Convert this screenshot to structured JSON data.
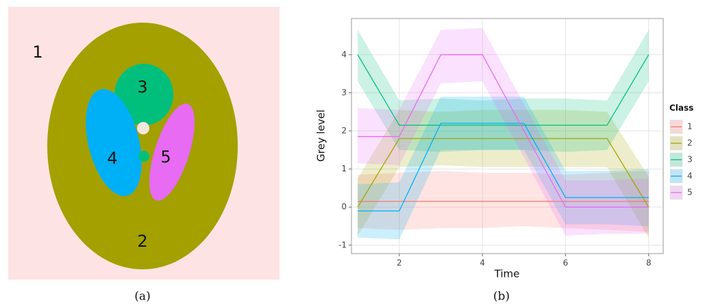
{
  "panel_a": {
    "labels": [
      "1",
      "2",
      "3",
      "4",
      "5"
    ],
    "caption": "(a)"
  },
  "chart_data": {
    "type": "line",
    "caption": "(b)",
    "x_label": "Time",
    "y_label": "Grey level",
    "legend_title": "Class",
    "x": [
      1,
      2,
      3,
      4,
      5,
      6,
      7,
      8
    ],
    "xlim": [
      0.85,
      8.35
    ],
    "xticks": [
      2,
      4,
      6,
      8
    ],
    "ylim": [
      -1.22,
      4.95
    ],
    "yticks": [
      -1,
      0,
      1,
      2,
      3,
      4
    ],
    "grid": true,
    "legend": "right",
    "series": [
      {
        "name": "1",
        "color": "#F8766D",
        "values": [
          0.15,
          0.15,
          0.15,
          0.15,
          0.15,
          0.15,
          0.15,
          0.15
        ],
        "lower": [
          -0.55,
          -0.6,
          -0.55,
          -0.55,
          -0.5,
          -0.55,
          -0.6,
          -0.65
        ],
        "upper": [
          0.85,
          0.9,
          0.95,
          0.9,
          0.9,
          0.85,
          0.9,
          0.95
        ]
      },
      {
        "name": "2",
        "color": "#A3A500",
        "values": [
          0,
          1.8,
          1.8,
          1.8,
          1.8,
          1.8,
          1.8,
          0
        ],
        "lower": [
          -0.75,
          1.05,
          1.1,
          1.05,
          1.05,
          1.05,
          1.05,
          -0.8
        ],
        "upper": [
          0.75,
          2.55,
          2.5,
          2.55,
          2.55,
          2.55,
          2.5,
          0.8
        ]
      },
      {
        "name": "3",
        "color": "#00BF7D",
        "values": [
          4,
          2.15,
          2.15,
          2.15,
          2.15,
          2.15,
          2.15,
          4
        ],
        "lower": [
          3.3,
          1.5,
          1.45,
          1.5,
          1.5,
          1.45,
          1.5,
          3.3
        ],
        "upper": [
          4.65,
          2.8,
          2.85,
          2.8,
          2.85,
          2.85,
          2.8,
          4.65
        ]
      },
      {
        "name": "4",
        "color": "#00B0F6",
        "values": [
          -0.1,
          -0.1,
          2.2,
          2.2,
          2.2,
          0.25,
          0.25,
          0.25
        ],
        "lower": [
          -0.8,
          -0.85,
          1.5,
          1.5,
          1.5,
          -0.45,
          -0.45,
          -0.5
        ],
        "upper": [
          0.6,
          0.65,
          2.9,
          2.9,
          2.9,
          0.95,
          0.95,
          1.0
        ]
      },
      {
        "name": "5",
        "color": "#E76BF3",
        "values": [
          1.85,
          1.85,
          4,
          4,
          2,
          0,
          0,
          0
        ],
        "lower": [
          1.15,
          1.1,
          3.25,
          3.3,
          1.3,
          -0.75,
          -0.7,
          -0.7
        ],
        "upper": [
          2.6,
          2.55,
          4.65,
          4.7,
          2.7,
          0.7,
          0.7,
          0.75
        ]
      }
    ]
  }
}
